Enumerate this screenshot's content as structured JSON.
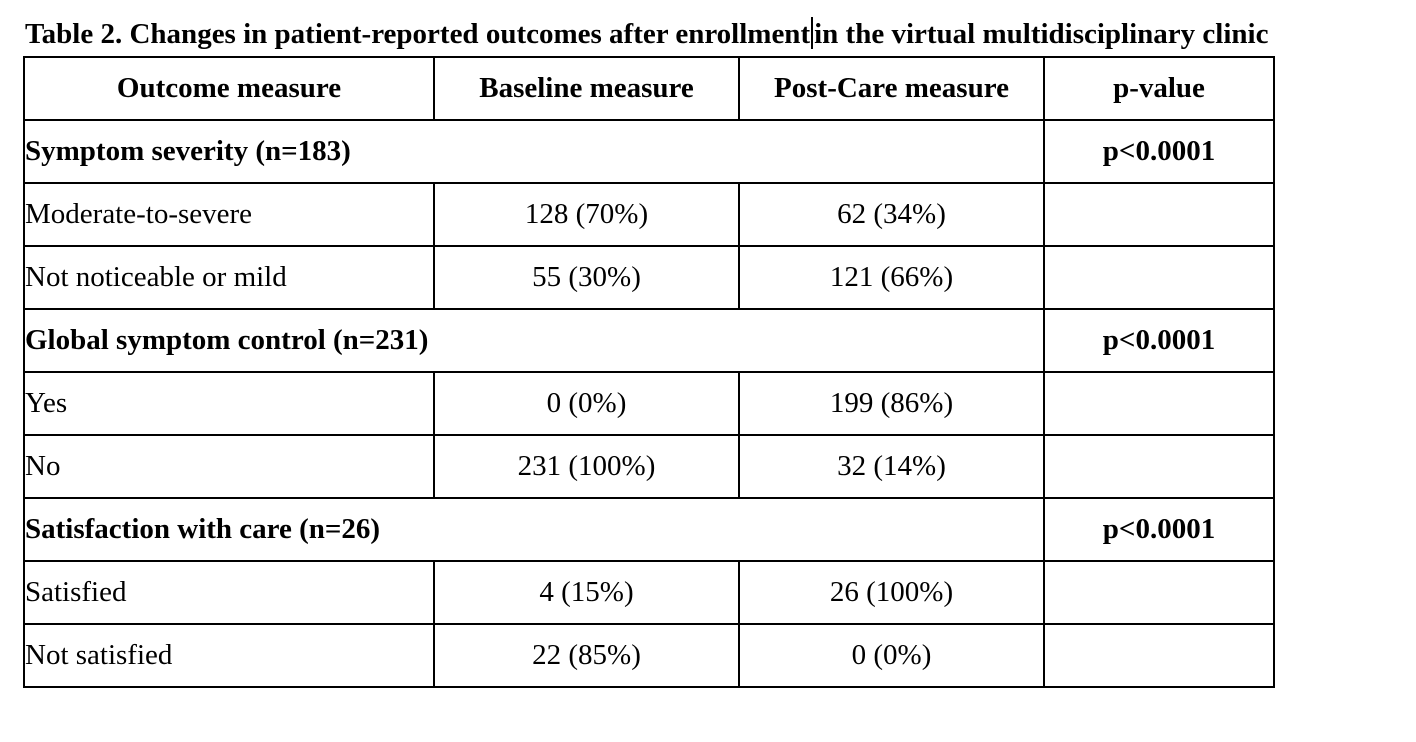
{
  "caption": {
    "before_caret": "Table 2. Changes in patient-reported outcomes after enrollment",
    "after_caret": "in the virtual multidisciplinary clinic"
  },
  "table": {
    "headers": [
      "Outcome measure",
      "Baseline measure",
      "Post-Care measure",
      "p-value"
    ],
    "groups": [
      {
        "label": "Symptom severity (n=183)",
        "p_value": "p<0.0001",
        "rows": [
          {
            "label": "Moderate-to-severe",
            "baseline": "128 (70%)",
            "post": "62 (34%)"
          },
          {
            "label": "Not noticeable or mild",
            "baseline": "55 (30%)",
            "post": "121 (66%)"
          }
        ]
      },
      {
        "label": "Global symptom control (n=231)",
        "p_value": "p<0.0001",
        "rows": [
          {
            "label": "Yes",
            "baseline": "0 (0%)",
            "post": "199 (86%)"
          },
          {
            "label": "No",
            "baseline": "231 (100%)",
            "post": "32 (14%)"
          }
        ]
      },
      {
        "label": "Satisfaction with care (n=26)",
        "p_value": "p<0.0001",
        "rows": [
          {
            "label": "Satisfied",
            "baseline": "4 (15%)",
            "post": "26 (100%)"
          },
          {
            "label": "Not satisfied",
            "baseline": "22 (85%)",
            "post": "0 (0%)"
          }
        ]
      }
    ]
  }
}
